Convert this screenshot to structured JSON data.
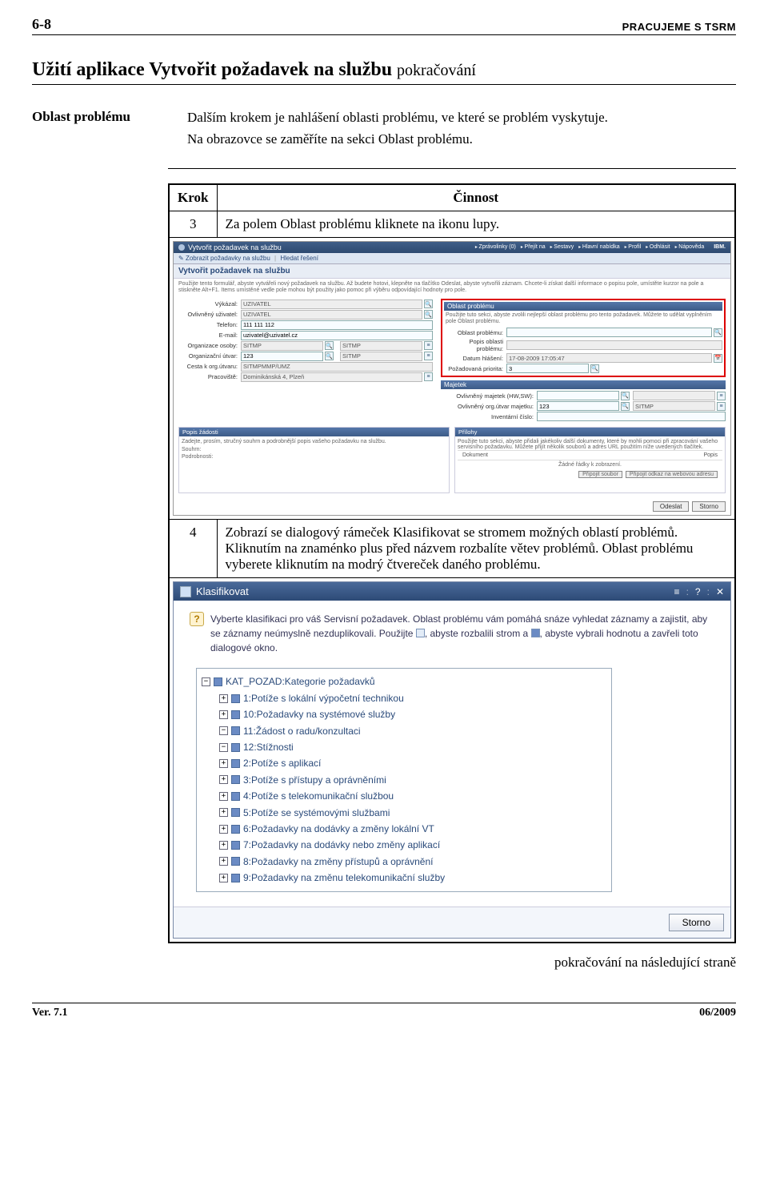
{
  "header": {
    "pagenum": "6-8",
    "right": "PRACUJEME S TSRM"
  },
  "title": {
    "main": "Užití aplikace Vytvořit požadavek na službu",
    "cont": "pokračování"
  },
  "intro": {
    "label": "Oblast problému",
    "p1": "Dalším krokem je nahlášení oblasti problému, ve které se problém vyskytuje.",
    "p2": "Na obrazovce se zaměříte na sekci Oblast problému."
  },
  "table": {
    "h1": "Krok",
    "h2": "Činnost",
    "step3_num": "3",
    "step3_text": "Za polem Oblast problému kliknete na ikonu lupy.",
    "step4_num": "4",
    "step4_text": "Zobrazí se dialogový rámeček Klasifikovat se stromem možných oblastí problémů. Kliknutím na znaménko plus před názvem rozbalíte větev problémů. Oblast problému vyberete kliknutím na modrý čtvereček daného problému."
  },
  "app1": {
    "title": "Vytvořit požadavek na službu",
    "toplinks": [
      "Zprávolinky (0)",
      "Přejít na",
      "Sestavy",
      "Hlavní nabídka",
      "Profil",
      "Odhlásit",
      "Nápověda"
    ],
    "brand": "IBM.",
    "tabs_a": "Zobrazit požadavky na službu",
    "tabs_b": "Hledat řešení",
    "form_title": "Vytvořit požadavek na službu",
    "helptext": "Použijte tento formulář, abyste vytvářeli nový požadavek na službu. Až budete hotovi, klepněte na tlačítko Odeslat, abyste vytvořili záznam. Chcete-li získat další informace o popisu pole, umístěte kurzor na pole a stiskněte Alt+F1. Items umístěné vedle pole mohou být použity jako pomoc při výběru odpovídající hodnoty pro pole.",
    "left": {
      "vykazal_l": "Výkázal:",
      "vykazal_v": "UZIVATEL",
      "ovliv_l": "Ovlivněný uživatel:",
      "ovliv_v": "UZIVATEL",
      "tel_l": "Telefon:",
      "tel_v": "111 111 112",
      "email_l": "E-mail:",
      "email_v": "uzivatel@uzivatel.cz",
      "org_l": "Organizace osoby:",
      "org_v": "SITMP",
      "org_v2": "SITMP",
      "orgu_l": "Organizační útvar:",
      "orgu_v": "123",
      "orgu_v2": "SITMP",
      "cesta_l": "Cesta k org.útvaru:",
      "cesta_v": "SITMPMMP/UMZ",
      "prac_l": "Pracoviště:",
      "prac_v": "Dominikánská 4, Plzeň"
    },
    "right": {
      "section": "Oblast problému",
      "help": "Použijte tuto sekci, abyste zvolili nejlepší oblast problému pro tento požadavek. Můžete to udělat vyplněním pole Oblast problému.",
      "oblast_l": "Oblast problému:",
      "popis_l": "Popis oblasti problému:",
      "datum_l": "Datum hlášení:",
      "datum_v": "17-08-2009 17:05:47",
      "prio_l": "Požadovaná priorita:",
      "prio_v": "3",
      "majetek_section": "Majetek",
      "maj1_l": "Ovlivněný majetek (HW,SW):",
      "maj2_l": "Ovlivněný org.útvar majetku:",
      "maj2_v": "123",
      "maj2_v2": "SITMP",
      "maj3_l": "Inventární číslo:"
    },
    "desc": {
      "left_h": "Popis žádosti",
      "left_help": "Zadejte, prosím, stručný souhrn a podrobnější popis vašeho požadavku na službu.",
      "souhrn_l": "Souhrn:",
      "podrob_l": "Podrobnosti:",
      "right_h": "Přílohy",
      "right_help": "Použijte tuto sekci, abyste přidali jakékoliv další dokumenty, které by mohli pomoci při zpracování vašeho servisního požadavku. Můžete přijít několik souborů a adres URL použitím níže uvedených tlačítek.",
      "col_doc": "Dokument",
      "col_desc": "Popis",
      "empty": "Žádné řádky k zobrazení.",
      "attach1": "Připojit soubor",
      "attach2": "Připojit odkaz na webovou adresu"
    },
    "btn_send": "Odeslat",
    "btn_cancel": "Storno"
  },
  "dlg": {
    "title": "Klasifikovat",
    "hint_a": "Vyberte klasifikaci pro váš Servisní požadavek. Oblast problému vám pomáhá snáze vyhledat záznamy a zajistit, aby se záznamy neúmyslně nezduplikovali. Použijte ",
    "hint_b": ", abyste rozbalili strom a ",
    "hint_c": ", abyste vybrali hodnotu a zavřeli toto dialogové okno.",
    "root": "KAT_POZAD:Kategorie požadavků",
    "items": [
      {
        "exp": "+",
        "label": "1:Potíže s lokální výpočetní technikou"
      },
      {
        "exp": "+",
        "label": "10:Požadavky na systémové služby"
      },
      {
        "exp": "−",
        "label": "11:Žádost o radu/konzultaci"
      },
      {
        "exp": "−",
        "label": "12:Stížnosti"
      },
      {
        "exp": "+",
        "label": "2:Potíže s aplikací"
      },
      {
        "exp": "+",
        "label": "3:Potíže s přístupy a oprávněními"
      },
      {
        "exp": "+",
        "label": "4:Potíže s telekomunikační službou"
      },
      {
        "exp": "+",
        "label": "5:Potíže se systémovými službami"
      },
      {
        "exp": "+",
        "label": "6:Požadavky na dodávky a změny lokální VT"
      },
      {
        "exp": "+",
        "label": "7:Požadavky na dodávky nebo změny aplikací"
      },
      {
        "exp": "+",
        "label": "8:Požadavky na změny přístupů a oprávnění"
      },
      {
        "exp": "+",
        "label": "9:Požadavky na změnu telekomunikační služby"
      }
    ],
    "btn": "Storno"
  },
  "continued": "pokračování na následující straně",
  "footer": {
    "left": "Ver. 7.1",
    "right": "06/2009"
  }
}
